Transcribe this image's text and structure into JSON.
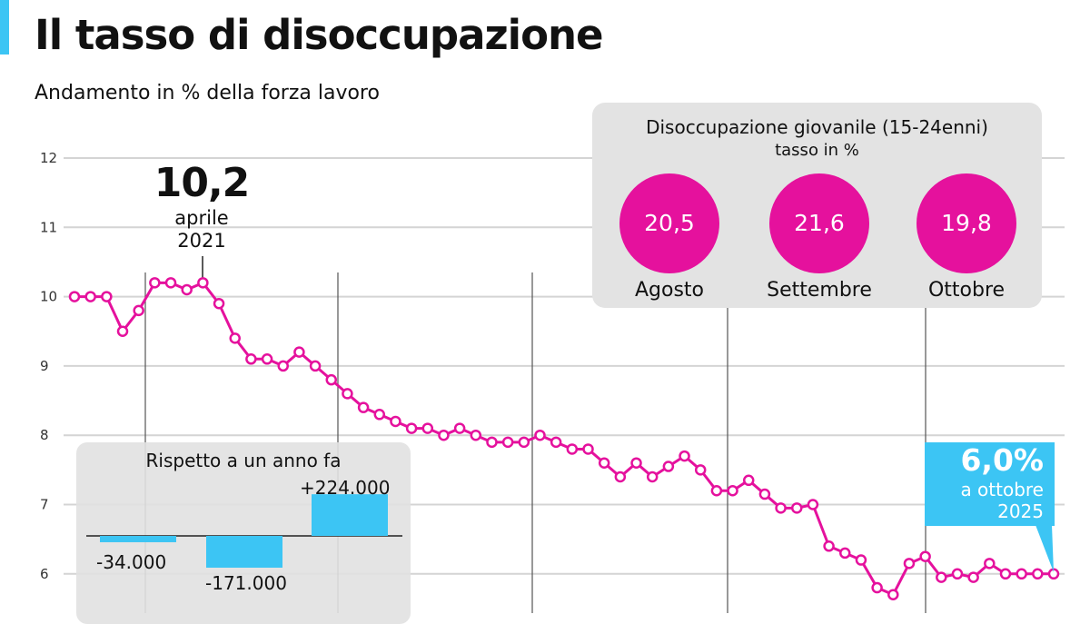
{
  "header": {
    "title": "Il tasso di disoccupazione",
    "subtitle": "Andamento in % della forza lavoro"
  },
  "colors": {
    "line": "#e5119d",
    "accent": "#3cc5f4",
    "panel": "#e3e3e3"
  },
  "chart_data": {
    "type": "line",
    "title": "Il tasso di disoccupazione",
    "ylabel": "Andamento in % della forza lavoro",
    "ylim": [
      5.5,
      12
    ],
    "yticks": [
      "12",
      "11",
      "10",
      "9",
      "8",
      "7",
      "6"
    ],
    "grid": true,
    "series": [
      {
        "name": "Tasso di disoccupazione (%)",
        "values": [
          10.0,
          10.0,
          10.0,
          9.5,
          9.8,
          10.2,
          10.2,
          10.1,
          10.2,
          9.9,
          9.4,
          9.1,
          9.1,
          9.0,
          9.2,
          9.0,
          8.8,
          8.6,
          8.4,
          8.3,
          8.2,
          8.1,
          8.1,
          8.0,
          8.1,
          8.0,
          7.9,
          7.9,
          7.9,
          8.0,
          7.9,
          7.8,
          7.8,
          7.6,
          7.4,
          7.6,
          7.4,
          7.55,
          7.7,
          7.5,
          7.2,
          7.2,
          7.35,
          7.15,
          6.95,
          6.95,
          7.0,
          6.4,
          6.3,
          6.2,
          5.8,
          5.7,
          6.15,
          6.25,
          5.95,
          6.0,
          5.95,
          6.15,
          6.0,
          6.0,
          6.0,
          6.0
        ]
      }
    ],
    "annotations": {
      "peak": {
        "value": "10,2",
        "month": "aprile",
        "year": "2021"
      },
      "latest": {
        "value": "6,0%",
        "line1": "a ottobre",
        "line2": "2025"
      }
    }
  },
  "youth": {
    "title": "Disoccupazione giovanile (15-24enni)",
    "subtitle": "tasso in %",
    "items": [
      {
        "label": "Agosto",
        "value": "20,5"
      },
      {
        "label": "Settembre",
        "value": "21,6"
      },
      {
        "label": "Ottobre",
        "value": "19,8"
      }
    ]
  },
  "yoy": {
    "title": "Rispetto a un anno fa",
    "bars": [
      {
        "label": "-34.000",
        "value": -34000
      },
      {
        "label": "-171.000",
        "value": -171000
      },
      {
        "label": "+224.000",
        "value": 224000
      }
    ]
  }
}
